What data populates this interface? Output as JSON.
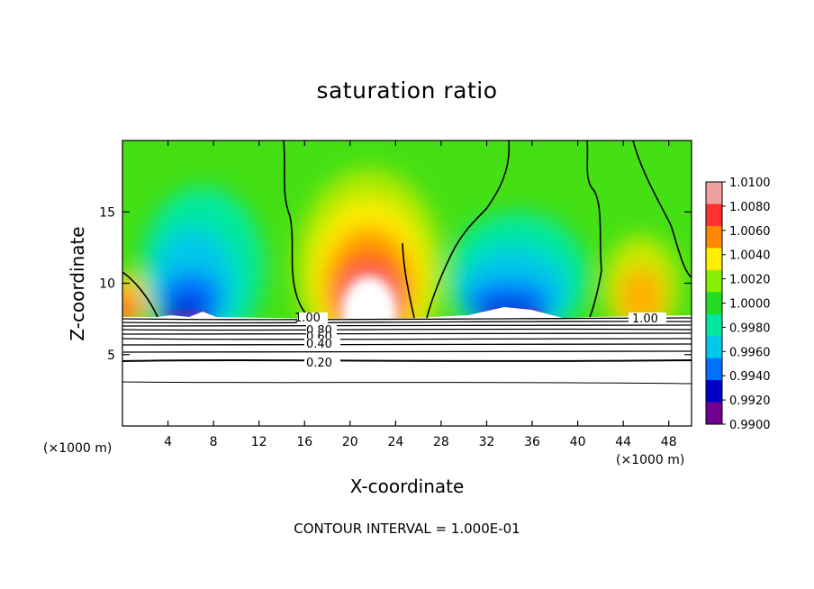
{
  "chart_data": {
    "type": "heatmap",
    "title": "saturation ratio",
    "xlabel": "X-coordinate",
    "ylabel": "Z-coordinate",
    "x_unit_note": "(×1000 m)",
    "contour_interval_text": "CONTOUR INTERVAL = 1.000E-01",
    "xlim": [
      0,
      50
    ],
    "ylim": [
      0,
      20
    ],
    "x_ticks": [
      4,
      8,
      12,
      16,
      20,
      24,
      28,
      32,
      36,
      40,
      44,
      48
    ],
    "y_ticks": [
      5,
      10,
      15
    ],
    "colorbar": {
      "min": 0.99,
      "max": 1.01,
      "labels": [
        "1.0100",
        "1.0080",
        "1.0060",
        "1.0040",
        "1.0020",
        "1.0000",
        "0.9980",
        "0.9960",
        "0.9940",
        "0.9920",
        "0.9900"
      ],
      "colors": [
        "#f0a0a0",
        "#ff3030",
        "#ff8800",
        "#ffee00",
        "#88ee00",
        "#22dd22",
        "#00e8a0",
        "#00c8e8",
        "#0070ff",
        "#0000c8",
        "#700090"
      ]
    },
    "contour_labels": [
      "1.00",
      "0.80",
      "0.60",
      "0.40",
      "0.20",
      "1.00"
    ],
    "surface_height_km": 7.5
  }
}
